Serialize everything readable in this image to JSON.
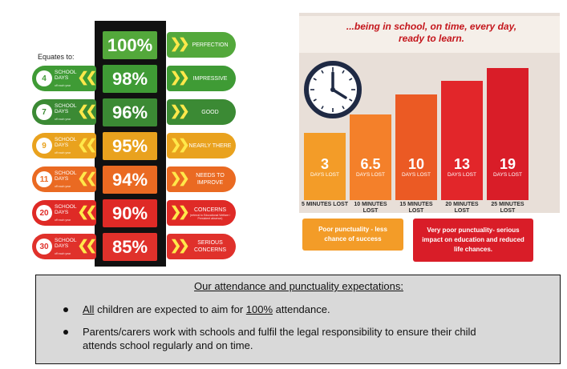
{
  "ladder": {
    "equates_label": "Equates to:",
    "levels": [
      {
        "percent": "100%",
        "label": "PERFECTION",
        "label_sub": "",
        "days_num": "",
        "days_line1": "",
        "days_line2": "",
        "days_sub": "",
        "color": "#53a83b"
      },
      {
        "percent": "98%",
        "label": "IMPRESSIVE",
        "label_sub": "",
        "days_num": "4",
        "days_line1": "SCHOOL",
        "days_line2": "DAYS",
        "days_sub": "off each year",
        "color": "#3f9b35"
      },
      {
        "percent": "96%",
        "label": "GOOD",
        "label_sub": "",
        "days_num": "7",
        "days_line1": "SCHOOL",
        "days_line2": "DAYS",
        "days_sub": "off each year",
        "color": "#3b8a34"
      },
      {
        "percent": "95%",
        "label": "NEARLY THERE",
        "label_sub": "",
        "days_num": "9",
        "days_line1": "SCHOOL",
        "days_line2": "DAYS",
        "days_sub": "off each year",
        "color": "#e9a21e"
      },
      {
        "percent": "94%",
        "label": "NEEDS TO IMPROVE",
        "label_sub": "",
        "days_num": "11",
        "days_line1": "SCHOOL",
        "days_line2": "DAYS",
        "days_sub": "off each year",
        "color": "#ea6a22"
      },
      {
        "percent": "90%",
        "label": "CONCERNS",
        "label_sub": "(referral to Educational Welfare / Persistent absence)",
        "days_num": "20",
        "days_line1": "SCHOOL",
        "days_line2": "DAYS",
        "days_sub": "off each year",
        "color": "#df2a26"
      },
      {
        "percent": "85%",
        "label": "SERIOUS CONCERNS",
        "label_sub": "",
        "days_num": "30",
        "days_line1": "SCHOOL",
        "days_line2": "DAYS",
        "days_sub": "off each year",
        "color": "#e0312b"
      }
    ]
  },
  "punctuality": {
    "headline_line1": "...being in school, on time, every day,",
    "headline_line2": "ready to learn.",
    "bars": [
      {
        "value": "3",
        "unit": "DAYS LOST",
        "minutes": "5 MINUTES LOST",
        "level": 0.51,
        "color": "#f39c28"
      },
      {
        "value": "6.5",
        "unit": "DAYS LOST",
        "minutes": "10 MINUTES LOST",
        "level": 0.65,
        "color": "#f4802a"
      },
      {
        "value": "10",
        "unit": "DAYS LOST",
        "minutes": "15 MINUTES LOST",
        "level": 0.8,
        "color": "#eb5a24"
      },
      {
        "value": "13",
        "unit": "DAYS LOST",
        "minutes": "20 MINUTES LOST",
        "level": 0.9,
        "color": "#e2262a"
      },
      {
        "value": "19",
        "unit": "DAYS LOST",
        "minutes": "25 MINUTES LOST",
        "level": 1.0,
        "color": "#d91d28"
      }
    ],
    "callout_left": "Poor punctuality - less chance of success",
    "callout_right": "Very poor punctuality- serious impact on education and reduced life chances.",
    "callout_left_color": "#f39c28",
    "callout_right_color": "#d91d28"
  },
  "expectations": {
    "title": "Our attendance and punctuality expectations:",
    "bullet1_pre": "",
    "bullet1_u1": "All",
    "bullet1_mid": " children are expected to aim for ",
    "bullet1_u2": "100%",
    "bullet1_post": " attendance.",
    "bullet2_line1": "Parents/carers work with schools and fulfil the legal responsibility to ensure their child",
    "bullet2_line2": "attends school regularly and on time."
  },
  "icons": {
    "clock": "clock-icon",
    "chevron": "double-chevron-icon"
  }
}
